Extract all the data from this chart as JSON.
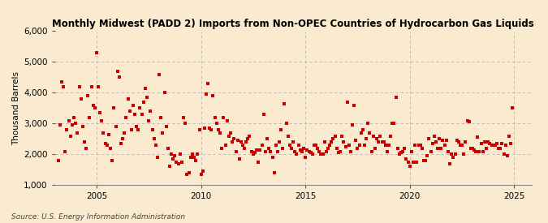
{
  "title": "Monthly Midwest (PADD 2) Imports from Non-OPEC Countries of Hydrocarbon Gas Liquids",
  "ylabel": "Thousand Barrels",
  "source": "Source: U.S. Energy Information Administration",
  "background_color": "#faebd0",
  "plot_bg_color": "#faebd0",
  "dot_color": "#cc0000",
  "dot_size": 6,
  "xlim": [
    2003.0,
    2025.83
  ],
  "ylim": [
    1000,
    6000
  ],
  "yticks": [
    1000,
    2000,
    3000,
    4000,
    5000,
    6000
  ],
  "xticks": [
    2005,
    2010,
    2015,
    2020,
    2025
  ],
  "grid_color": "#aaaaaa",
  "x_values": [
    2003.17,
    2003.25,
    2003.33,
    2003.42,
    2003.5,
    2003.58,
    2003.67,
    2003.75,
    2003.83,
    2003.92,
    2004.0,
    2004.08,
    2004.17,
    2004.25,
    2004.33,
    2004.42,
    2004.5,
    2004.58,
    2004.67,
    2004.75,
    2004.83,
    2004.92,
    2005.0,
    2005.08,
    2005.17,
    2005.25,
    2005.33,
    2005.42,
    2005.5,
    2005.58,
    2005.67,
    2005.75,
    2005.83,
    2005.92,
    2006.0,
    2006.08,
    2006.17,
    2006.25,
    2006.33,
    2006.42,
    2006.5,
    2006.58,
    2006.67,
    2006.75,
    2006.83,
    2006.92,
    2007.0,
    2007.08,
    2007.17,
    2007.25,
    2007.33,
    2007.42,
    2007.5,
    2007.58,
    2007.67,
    2007.75,
    2007.83,
    2007.92,
    2008.0,
    2008.08,
    2008.17,
    2008.25,
    2008.33,
    2008.42,
    2008.5,
    2008.58,
    2008.67,
    2008.75,
    2008.83,
    2008.92,
    2009.0,
    2009.08,
    2009.17,
    2009.25,
    2009.33,
    2009.42,
    2009.5,
    2009.58,
    2009.67,
    2009.75,
    2009.83,
    2009.92,
    2010.0,
    2010.08,
    2010.17,
    2010.25,
    2010.33,
    2010.42,
    2010.5,
    2010.58,
    2010.67,
    2010.75,
    2010.83,
    2010.92,
    2011.0,
    2011.08,
    2011.17,
    2011.25,
    2011.33,
    2011.42,
    2011.5,
    2011.58,
    2011.67,
    2011.75,
    2011.83,
    2011.92,
    2012.0,
    2012.08,
    2012.17,
    2012.25,
    2012.33,
    2012.42,
    2012.5,
    2012.58,
    2012.67,
    2012.75,
    2012.83,
    2012.92,
    2013.0,
    2013.08,
    2013.17,
    2013.25,
    2013.33,
    2013.42,
    2013.5,
    2013.58,
    2013.67,
    2013.75,
    2013.83,
    2013.92,
    2014.0,
    2014.08,
    2014.17,
    2014.25,
    2014.33,
    2014.42,
    2014.5,
    2014.58,
    2014.67,
    2014.75,
    2014.83,
    2014.92,
    2015.0,
    2015.08,
    2015.17,
    2015.25,
    2015.33,
    2015.42,
    2015.5,
    2015.58,
    2015.67,
    2015.75,
    2015.83,
    2015.92,
    2016.0,
    2016.08,
    2016.17,
    2016.25,
    2016.33,
    2016.42,
    2016.5,
    2016.58,
    2016.67,
    2016.75,
    2016.83,
    2016.92,
    2017.0,
    2017.08,
    2017.17,
    2017.25,
    2017.33,
    2017.42,
    2017.5,
    2017.58,
    2017.67,
    2017.75,
    2017.83,
    2017.92,
    2018.0,
    2018.08,
    2018.17,
    2018.25,
    2018.33,
    2018.42,
    2018.5,
    2018.58,
    2018.67,
    2018.75,
    2018.83,
    2018.92,
    2019.0,
    2019.08,
    2019.17,
    2019.25,
    2019.33,
    2019.42,
    2019.5,
    2019.58,
    2019.67,
    2019.75,
    2019.83,
    2019.92,
    2020.0,
    2020.08,
    2020.17,
    2020.25,
    2020.33,
    2020.42,
    2020.5,
    2020.58,
    2020.67,
    2020.75,
    2020.83,
    2020.92,
    2021.0,
    2021.08,
    2021.17,
    2021.25,
    2021.33,
    2021.42,
    2021.5,
    2021.58,
    2021.67,
    2021.75,
    2021.83,
    2021.92,
    2022.0,
    2022.08,
    2022.17,
    2022.25,
    2022.33,
    2022.42,
    2022.5,
    2022.58,
    2022.67,
    2022.75,
    2022.83,
    2022.92,
    2023.0,
    2023.08,
    2023.17,
    2023.25,
    2023.33,
    2023.42,
    2023.5,
    2023.58,
    2023.67,
    2023.75,
    2023.83,
    2023.92,
    2024.0,
    2024.08,
    2024.17,
    2024.25,
    2024.33,
    2024.42,
    2024.5,
    2024.58,
    2024.67,
    2024.75,
    2024.83,
    2024.92
  ],
  "y_values": [
    1800,
    2950,
    4350,
    4200,
    2100,
    2800,
    3100,
    2600,
    2950,
    3200,
    3000,
    2700,
    4200,
    3800,
    2900,
    2400,
    2200,
    3900,
    3200,
    4200,
    3600,
    3500,
    5300,
    4200,
    3350,
    3100,
    2700,
    2350,
    2300,
    2650,
    2200,
    1800,
    3500,
    2900,
    4700,
    4500,
    2350,
    2500,
    2700,
    3200,
    3800,
    3400,
    2800,
    3600,
    3300,
    2900,
    2800,
    3500,
    3300,
    3700,
    4150,
    3850,
    3100,
    3400,
    2800,
    2500,
    2300,
    1900,
    4600,
    3200,
    2700,
    4000,
    2900,
    2200,
    1600,
    2000,
    1850,
    1950,
    1750,
    1700,
    2000,
    1750,
    3200,
    3000,
    1350,
    1400,
    1900,
    2000,
    1900,
    1800,
    2000,
    2800,
    1350,
    1450,
    2850,
    3950,
    4300,
    2850,
    2800,
    3900,
    3200,
    3000,
    2800,
    2700,
    2200,
    3200,
    2300,
    3100,
    2600,
    2700,
    2400,
    2500,
    2100,
    2450,
    1850,
    2400,
    2300,
    2200,
    2400,
    2500,
    2600,
    2100,
    2000,
    2050,
    2150,
    1750,
    2150,
    2300,
    3300,
    2100,
    2500,
    2200,
    2100,
    1900,
    1400,
    2300,
    2100,
    2400,
    2800,
    2200,
    3650,
    3000,
    2600,
    2300,
    2200,
    2400,
    2100,
    2000,
    2300,
    2150,
    2100,
    2200,
    1900,
    2150,
    2100,
    2050,
    2000,
    2300,
    2300,
    2200,
    2100,
    2000,
    2000,
    2400,
    2100,
    2200,
    2300,
    2400,
    2500,
    2600,
    2200,
    2050,
    2100,
    2600,
    2400,
    2250,
    3700,
    2300,
    2100,
    2950,
    3600,
    2450,
    2200,
    2300,
    2700,
    2800,
    2300,
    2500,
    3000,
    2700,
    2100,
    2600,
    2200,
    2500,
    2400,
    2600,
    2400,
    2400,
    2300,
    2100,
    2300,
    2600,
    3000,
    3000,
    3850,
    2200,
    2000,
    2050,
    2100,
    2200,
    1850,
    1750,
    1600,
    2100,
    1750,
    2300,
    1750,
    2300,
    2300,
    2200,
    1800,
    1800,
    1950,
    2500,
    2100,
    2350,
    2600,
    2400,
    2200,
    2500,
    2200,
    2450,
    2300,
    2450,
    2100,
    1700,
    2000,
    1900,
    2000,
    2450,
    2400,
    2300,
    2300,
    2000,
    2400,
    3100,
    3050,
    2200,
    2200,
    2150,
    2100,
    2550,
    2100,
    2350,
    2100,
    2400,
    2200,
    2400,
    2350,
    2300,
    2300,
    2300,
    2350,
    2200,
    2200,
    2350,
    2000,
    2300,
    1950,
    2600,
    2350,
    3500
  ]
}
